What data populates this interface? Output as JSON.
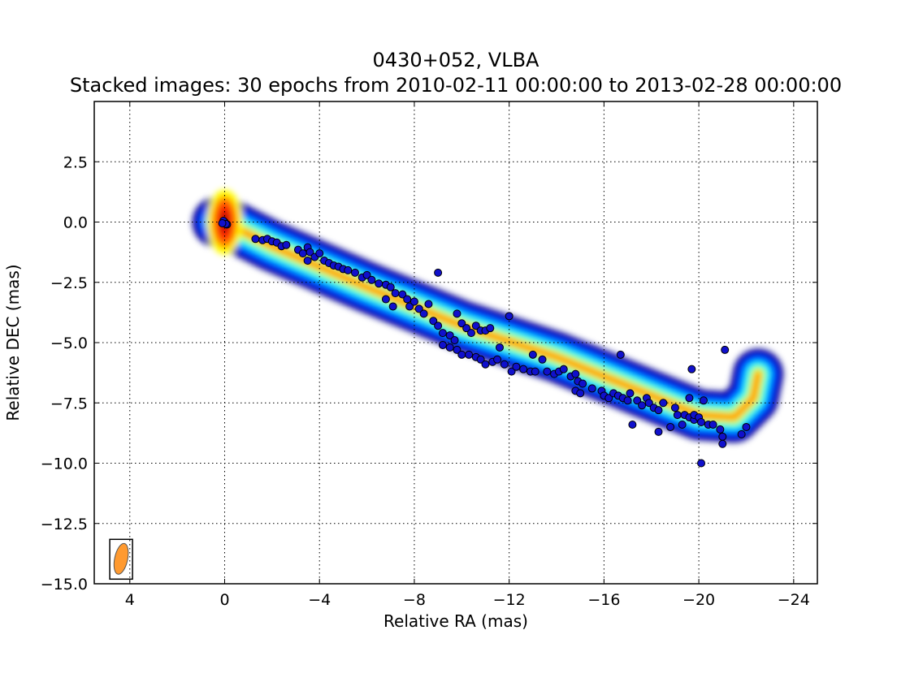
{
  "chart_data": {
    "type": "scatter",
    "title": "0430+052, VLBA",
    "subtitle": "Stacked images: 30 epochs from 2010-02-11 00:00:00 to 2013-02-28 00:00:00",
    "xlabel": "Relative RA (mas)",
    "ylabel": "Relative DEC (mas)",
    "xlim": [
      5.5,
      -25
    ],
    "ylim": [
      -15,
      5
    ],
    "x_reversed": true,
    "grid": true,
    "xticks": [
      4,
      0,
      -4,
      -8,
      -12,
      -16,
      -20,
      -24
    ],
    "xtick_labels": [
      "4",
      "0",
      "−4",
      "−8",
      "−12",
      "−16",
      "−20",
      "−24"
    ],
    "yticks": [
      2.5,
      0.0,
      -2.5,
      -5.0,
      -7.5,
      -10.0,
      -12.5,
      -15.0
    ],
    "ytick_labels": [
      "2.5",
      "0.0",
      "−2.5",
      "−5.0",
      "−7.5",
      "−10.0",
      "−12.5",
      "−15.0"
    ],
    "image_colormap": "jet",
    "beam": {
      "x": 4.4,
      "y": -14.0,
      "major": 1.3,
      "minor": 0.5,
      "color": "#ff9a30"
    },
    "jet_ridge": [
      [
        0.3,
        0
      ],
      [
        0,
        0
      ],
      [
        -2,
        -1
      ],
      [
        -6,
        -2.7
      ],
      [
        -10,
        -4.3
      ],
      [
        -14,
        -5.6
      ],
      [
        -18,
        -7.2
      ],
      [
        -20,
        -8
      ],
      [
        -21.5,
        -8.1
      ],
      [
        -22.3,
        -7.3
      ],
      [
        -22.5,
        -6.3
      ]
    ],
    "component_color": "#1010cc",
    "components": [
      {
        "x": 0.0,
        "y": 0.0
      },
      {
        "x": -0.1,
        "y": -0.1
      },
      {
        "x": 0.05,
        "y": 0.05
      },
      {
        "x": -0.05,
        "y": -0.08
      },
      {
        "x": 0.1,
        "y": -0.05
      },
      {
        "x": -1.3,
        "y": -0.7
      },
      {
        "x": -1.6,
        "y": -0.75
      },
      {
        "x": -1.8,
        "y": -0.7
      },
      {
        "x": -2.0,
        "y": -0.8
      },
      {
        "x": -2.2,
        "y": -0.85
      },
      {
        "x": -2.4,
        "y": -1.0
      },
      {
        "x": -2.6,
        "y": -0.95
      },
      {
        "x": -3.1,
        "y": -1.15
      },
      {
        "x": -3.3,
        "y": -1.3
      },
      {
        "x": -3.5,
        "y": -1.05
      },
      {
        "x": -3.6,
        "y": -1.25
      },
      {
        "x": -3.5,
        "y": -1.6
      },
      {
        "x": -3.8,
        "y": -1.45
      },
      {
        "x": -4.0,
        "y": -1.3
      },
      {
        "x": -4.2,
        "y": -1.6
      },
      {
        "x": -4.4,
        "y": -1.7
      },
      {
        "x": -4.6,
        "y": -1.8
      },
      {
        "x": -4.8,
        "y": -1.85
      },
      {
        "x": -5.0,
        "y": -1.95
      },
      {
        "x": -5.2,
        "y": -2.0
      },
      {
        "x": -5.5,
        "y": -2.1
      },
      {
        "x": -5.8,
        "y": -2.3
      },
      {
        "x": -6.0,
        "y": -2.2
      },
      {
        "x": -6.2,
        "y": -2.4
      },
      {
        "x": -6.5,
        "y": -2.55
      },
      {
        "x": -6.8,
        "y": -2.6
      },
      {
        "x": -7.0,
        "y": -2.7
      },
      {
        "x": -7.2,
        "y": -2.95
      },
      {
        "x": -6.8,
        "y": -3.2
      },
      {
        "x": -7.1,
        "y": -3.5
      },
      {
        "x": -7.5,
        "y": -3.0
      },
      {
        "x": -7.7,
        "y": -3.2
      },
      {
        "x": -7.8,
        "y": -3.5
      },
      {
        "x": -8.0,
        "y": -3.3
      },
      {
        "x": -8.2,
        "y": -3.6
      },
      {
        "x": -8.4,
        "y": -3.8
      },
      {
        "x": -8.6,
        "y": -3.4
      },
      {
        "x": -9.0,
        "y": -2.1
      },
      {
        "x": -8.8,
        "y": -4.1
      },
      {
        "x": -9.0,
        "y": -4.3
      },
      {
        "x": -9.2,
        "y": -4.6
      },
      {
        "x": -9.5,
        "y": -4.7
      },
      {
        "x": -9.7,
        "y": -4.9
      },
      {
        "x": -9.8,
        "y": -3.8
      },
      {
        "x": -10.0,
        "y": -4.2
      },
      {
        "x": -10.2,
        "y": -4.4
      },
      {
        "x": -10.4,
        "y": -4.6
      },
      {
        "x": -10.6,
        "y": -4.3
      },
      {
        "x": -10.8,
        "y": -4.5
      },
      {
        "x": -11.0,
        "y": -4.5
      },
      {
        "x": -11.2,
        "y": -4.4
      },
      {
        "x": -9.2,
        "y": -5.1
      },
      {
        "x": -9.5,
        "y": -5.2
      },
      {
        "x": -9.8,
        "y": -5.3
      },
      {
        "x": -10.0,
        "y": -5.5
      },
      {
        "x": -10.3,
        "y": -5.5
      },
      {
        "x": -10.6,
        "y": -5.6
      },
      {
        "x": -10.8,
        "y": -5.7
      },
      {
        "x": -11.0,
        "y": -5.9
      },
      {
        "x": -11.3,
        "y": -5.8
      },
      {
        "x": -11.5,
        "y": -5.7
      },
      {
        "x": -11.6,
        "y": -5.2
      },
      {
        "x": -11.8,
        "y": -5.9
      },
      {
        "x": -12.0,
        "y": -3.9
      },
      {
        "x": -12.1,
        "y": -6.2
      },
      {
        "x": -12.3,
        "y": -6.0
      },
      {
        "x": -12.6,
        "y": -6.1
      },
      {
        "x": -12.9,
        "y": -6.2
      },
      {
        "x": -13.1,
        "y": -6.2
      },
      {
        "x": -13.0,
        "y": -5.5
      },
      {
        "x": -13.4,
        "y": -5.7
      },
      {
        "x": -13.6,
        "y": -6.2
      },
      {
        "x": -13.9,
        "y": -6.3
      },
      {
        "x": -14.1,
        "y": -6.2
      },
      {
        "x": -14.3,
        "y": -6.1
      },
      {
        "x": -14.6,
        "y": -6.4
      },
      {
        "x": -14.8,
        "y": -6.3
      },
      {
        "x": -14.9,
        "y": -6.6
      },
      {
        "x": -15.1,
        "y": -6.7
      },
      {
        "x": -14.8,
        "y": -7.0
      },
      {
        "x": -15.0,
        "y": -7.1
      },
      {
        "x": -15.5,
        "y": -6.9
      },
      {
        "x": -15.9,
        "y": -7.0
      },
      {
        "x": -16.0,
        "y": -7.2
      },
      {
        "x": -16.2,
        "y": -7.3
      },
      {
        "x": -16.4,
        "y": -7.1
      },
      {
        "x": -16.6,
        "y": -7.2
      },
      {
        "x": -16.8,
        "y": -7.3
      },
      {
        "x": -16.7,
        "y": -5.5
      },
      {
        "x": -17.0,
        "y": -7.4
      },
      {
        "x": -17.1,
        "y": -7.1
      },
      {
        "x": -17.4,
        "y": -7.4
      },
      {
        "x": -17.6,
        "y": -7.6
      },
      {
        "x": -17.8,
        "y": -7.3
      },
      {
        "x": -17.9,
        "y": -7.5
      },
      {
        "x": -18.1,
        "y": -7.7
      },
      {
        "x": -18.3,
        "y": -7.8
      },
      {
        "x": -17.2,
        "y": -8.4
      },
      {
        "x": -18.3,
        "y": -8.7
      },
      {
        "x": -18.5,
        "y": -7.5
      },
      {
        "x": -18.8,
        "y": -8.5
      },
      {
        "x": -19.0,
        "y": -7.7
      },
      {
        "x": -19.1,
        "y": -8.0
      },
      {
        "x": -19.3,
        "y": -8.4
      },
      {
        "x": -19.4,
        "y": -8.0
      },
      {
        "x": -19.6,
        "y": -7.3
      },
      {
        "x": -19.6,
        "y": -8.1
      },
      {
        "x": -19.8,
        "y": -8.2
      },
      {
        "x": -19.8,
        "y": -8.0
      },
      {
        "x": -20.0,
        "y": -8.1
      },
      {
        "x": -20.1,
        "y": -8.3
      },
      {
        "x": -19.7,
        "y": -6.1
      },
      {
        "x": -20.2,
        "y": -7.4
      },
      {
        "x": -20.4,
        "y": -8.4
      },
      {
        "x": -20.6,
        "y": -8.4
      },
      {
        "x": -20.9,
        "y": -8.6
      },
      {
        "x": -21.0,
        "y": -8.9
      },
      {
        "x": -21.0,
        "y": -9.2
      },
      {
        "x": -20.1,
        "y": -10.0
      },
      {
        "x": -21.1,
        "y": -5.3
      },
      {
        "x": -21.8,
        "y": -8.8
      },
      {
        "x": -22.0,
        "y": -8.5
      }
    ]
  }
}
